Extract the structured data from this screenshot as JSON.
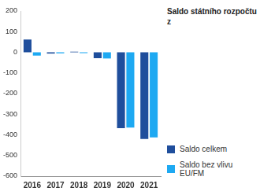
{
  "chart_data": {
    "type": "bar",
    "title": "Saldo státního rozpočtu z",
    "categories": [
      "2016",
      "2017",
      "2018",
      "2019",
      "2020",
      "2021"
    ],
    "series": [
      {
        "name": "Saldo celkem",
        "color": "#1f4e9c",
        "values": [
          61.8,
          -6.2,
          2.9,
          -28.5,
          -367.4,
          -419.7
        ]
      },
      {
        "name": "Saldo bez vlivu EU/FM",
        "color": "#1ea9f2",
        "values": [
          -16,
          -5,
          -4,
          -30,
          -365,
          -412
        ]
      }
    ],
    "ylim": [
      -600,
      200
    ],
    "yticks": [
      -600,
      -500,
      -400,
      -300,
      -200,
      -100,
      0,
      100,
      200
    ],
    "grid": false,
    "legend": "right"
  }
}
